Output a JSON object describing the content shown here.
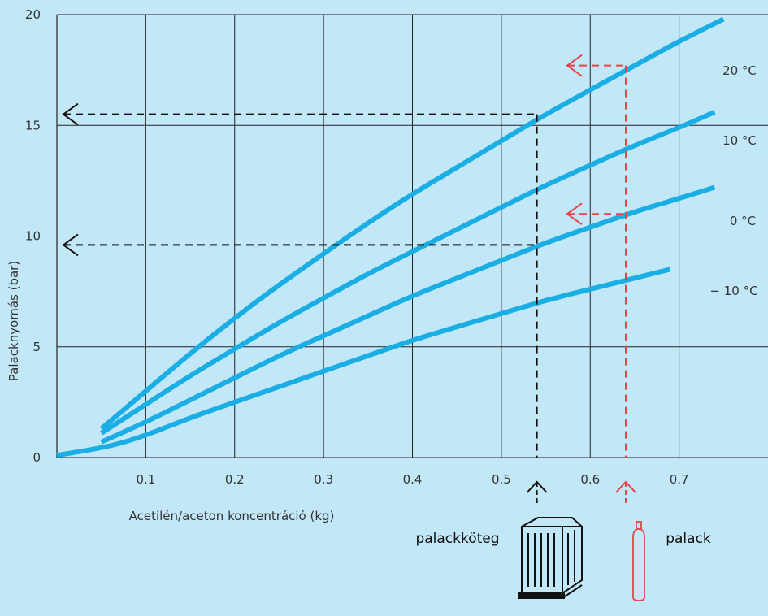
{
  "chart_data": {
    "type": "line",
    "xlabel": "Acetilén/aceton koncentráció (kg)",
    "ylabel": "Palacknyomás  (bar)",
    "xlim": [
      0,
      0.8
    ],
    "ylim": [
      0,
      20
    ],
    "x_ticks": [
      "0.1",
      "0.2",
      "0.3",
      "0.4",
      "0.5",
      "0.6",
      "0.7"
    ],
    "y_ticks": [
      "0",
      "5",
      "10",
      "15",
      "20"
    ],
    "grid": true,
    "colors": {
      "series": "#1aaee5",
      "bundle": "#111111",
      "cylinder": "#e8434a",
      "background": "#c2e8f8"
    },
    "series": [
      {
        "name": "20 °C",
        "x": [
          0.05,
          0.1,
          0.15,
          0.2,
          0.25,
          0.3,
          0.35,
          0.4,
          0.45,
          0.5,
          0.55,
          0.6,
          0.65,
          0.7,
          0.75
        ],
        "y": [
          1.3,
          3.0,
          4.7,
          6.3,
          7.8,
          9.2,
          10.6,
          11.9,
          13.1,
          14.3,
          15.5,
          16.6,
          17.7,
          18.8,
          19.8
        ]
      },
      {
        "name": "10 °C",
        "x": [
          0.05,
          0.1,
          0.15,
          0.2,
          0.25,
          0.3,
          0.35,
          0.4,
          0.45,
          0.5,
          0.55,
          0.6,
          0.65,
          0.7,
          0.74
        ],
        "y": [
          1.1,
          2.4,
          3.7,
          4.9,
          6.1,
          7.2,
          8.3,
          9.3,
          10.3,
          11.3,
          12.3,
          13.2,
          14.1,
          14.9,
          15.6
        ]
      },
      {
        "name": "0 °C",
        "x": [
          0.05,
          0.1,
          0.15,
          0.2,
          0.25,
          0.3,
          0.35,
          0.4,
          0.45,
          0.5,
          0.55,
          0.6,
          0.65,
          0.7,
          0.74
        ],
        "y": [
          0.7,
          1.6,
          2.6,
          3.6,
          4.6,
          5.5,
          6.4,
          7.3,
          8.1,
          8.9,
          9.7,
          10.4,
          11.1,
          11.7,
          12.2
        ]
      },
      {
        "name": "− 10 °C",
        "x": [
          0.0,
          0.06,
          0.1,
          0.15,
          0.2,
          0.25,
          0.3,
          0.35,
          0.4,
          0.45,
          0.5,
          0.55,
          0.6,
          0.65,
          0.69
        ],
        "y": [
          0.1,
          0.5,
          1.0,
          1.8,
          2.5,
          3.2,
          3.9,
          4.6,
          5.3,
          5.9,
          6.5,
          7.1,
          7.6,
          8.1,
          8.5
        ]
      }
    ],
    "annotations": [
      {
        "name": "palackköteg",
        "x": 0.54,
        "y_values": [
          15.5,
          9.6
        ]
      },
      {
        "name": "palack",
        "x": 0.64,
        "y_values": [
          17.7,
          11.0
        ]
      }
    ]
  }
}
